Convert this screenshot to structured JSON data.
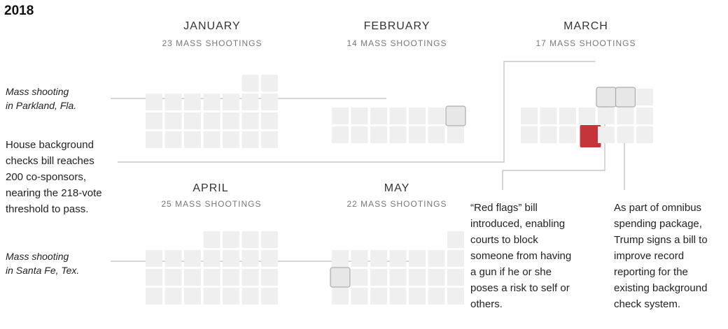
{
  "chart_data": {
    "type": "waffle",
    "year": "2018",
    "unit": "mass shootings",
    "months": [
      {
        "name": "JANUARY",
        "label": "23 MASS SHOOTINGS",
        "value": 23
      },
      {
        "name": "FEBRUARY",
        "label": "14 MASS SHOOTINGS",
        "value": 14
      },
      {
        "name": "MARCH",
        "label": "17 MASS SHOOTINGS",
        "value": 17
      },
      {
        "name": "APRIL",
        "label": "25 MASS SHOOTINGS",
        "value": 25
      },
      {
        "name": "MAY",
        "label": "22 MASS SHOOTINGS",
        "value": 22
      }
    ],
    "annotations": [
      {
        "id": "parkland",
        "lines": [
          "Mass shooting",
          "in Parkland, Fla."
        ],
        "italic": true,
        "month": "FEBRUARY"
      },
      {
        "id": "background-bill",
        "lines": [
          "House background",
          "checks bill reaches",
          "200 co-sponsors,",
          "nearing the 218-vote",
          "threshold to pass."
        ],
        "italic": false,
        "month": "MARCH"
      },
      {
        "id": "santa-fe",
        "lines": [
          "Mass shooting",
          "in Santa Fe, Tex."
        ],
        "italic": true,
        "month": "MAY"
      },
      {
        "id": "red-flags",
        "lines": [
          "“Red flags” bill",
          "introduced, enabling",
          "courts to block",
          "someone from having",
          "a gun if he or she",
          "poses a risk to self or",
          "others."
        ],
        "italic": false,
        "month": "MARCH"
      },
      {
        "id": "omnibus",
        "lines": [
          "As part of omnibus",
          "spending package,",
          "Trump signs a bill to",
          "improve record",
          "reporting for the",
          "existing background",
          "check system."
        ],
        "italic": false,
        "month": "MARCH"
      }
    ],
    "colors": {
      "cell": "#efefef",
      "highlight_border": "#aaaaaa",
      "event": "#c5343b",
      "leader": "#bcbcbc"
    }
  }
}
